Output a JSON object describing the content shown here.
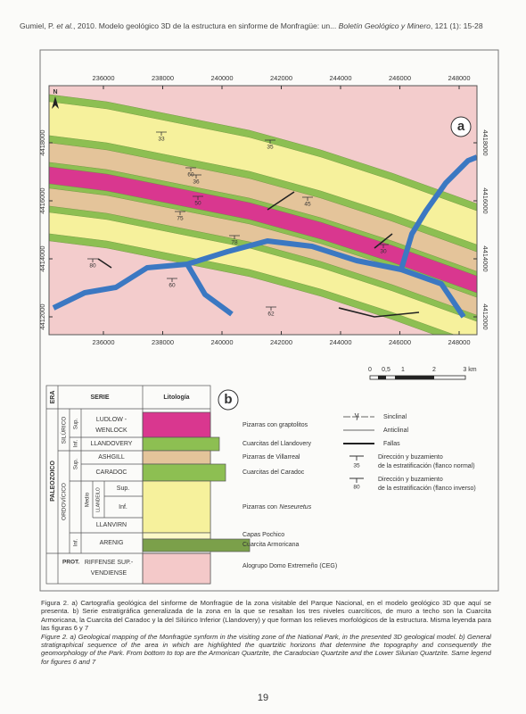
{
  "header": {
    "author": "Gumiel, P.",
    "et_al": "et al.",
    "citation": ", 2010. Modelo geológico 3D de la estructura en sinforme de Monfragüe: un...",
    "journal": "Boletín Geológico y Minero",
    "volume": ", 121 (1): 15-28"
  },
  "figure_a": {
    "label": "a",
    "north": "N",
    "x_ticks": [
      236000,
      238000,
      240000,
      242000,
      244000,
      246000,
      248000
    ],
    "y_ticks": [
      4412000,
      4414000,
      4416000,
      4418000
    ],
    "dips": [
      "33",
      "35",
      "60",
      "36",
      "50",
      "45",
      "75",
      "78",
      "30",
      "80",
      "60",
      "62"
    ],
    "scale_bar": [
      "0",
      "0,5",
      "1",
      "2",
      "3 km"
    ]
  },
  "figure_b": {
    "label": "b",
    "headers": {
      "era": "ERA",
      "serie": "SERIE",
      "lithology": "Litología"
    },
    "eras": {
      "proterozoic": "PROT.",
      "paleozoic": "PALEOZOICO"
    },
    "systems": {
      "silurian": "SILÚRICO",
      "ordovician": "ORDOVÍCICO"
    },
    "subdivisions": {
      "silurian_sup": "Sup.",
      "silurian_inf": "Inf.",
      "ordovician_sup": "Sup.",
      "ordovician_medio": "Medio",
      "ordovician_inf": "Inf.",
      "llandeilo": "LLANDEILO",
      "llandeilo_sup": "Sup.",
      "llandeilo_inf": "Inf."
    },
    "series": {
      "ludlow": "LUDLOW -",
      "wenlock": "WENLOCK",
      "llandovery": "LLANDOVERY",
      "ashgill": "ASHGILL",
      "caradoc": "CARADOC",
      "llanvirn": "LLANVIRN",
      "arenig": "ARENIG",
      "riffense": "RIFFENSE SUP.-",
      "vendiense": "VENDIENSE"
    },
    "lithologies": {
      "graptolitos": "Pizarras con graptolitos",
      "llandovery": "Cuarcitas del Llandovery",
      "villarreal": "Pizarras de Villarreal",
      "caradoc": "Cuarcitas del Caradoc",
      "neseuretus_prefix": "Pizarras con",
      "neseuretus": "Neseuretus",
      "pochico": "Capas Pochico",
      "armoricana": "Cuarcita Armoricana",
      "ceg": "Alogrupo Domo Extremeño (CEG)"
    },
    "symbols": {
      "sinclinal": "Sinclinal",
      "anticlinal": "Anticlinal",
      "fallas": "Fallas",
      "normal_line1": "Dirección y buzamiento",
      "normal_line2": "de la estratificación (flanco normal)",
      "normal_dip": "35",
      "inverse_line1": "Dirección y buzamiento",
      "inverse_line2": "de la estratificación (flanco inverso)",
      "inverse_dip": "80"
    }
  },
  "caption": {
    "spanish": "Figura 2. a) Cartografía geológica del sinforme de Monfragüe de la zona visitable del Parque Nacional, en el modelo geológico 3D que aquí se presenta. b) Serie estratigráfica generalizada de la zona en la que se resaltan los tres niveles cuarcíticos, de muro a techo son la Cuarcita Armoricana, la Cuarcita del Caradoc y la del Silúrico Inferior (Llandovery) y que forman los relieves morfológicos de la estructura. Misma leyenda para las figuras 6 y 7",
    "english": "Figure 2. a) Geological mapping of the Monfragüe synform in the visiting zone of the National Park, in the presented 3D geological model. b) General stratigraphical sequence of the area in which are highlighted the quartzitic horizons that determine the topography and consequently the geomorphology of the Park. From bottom to top are the Armorican Quartzite, the Caradocian Quartzite and the Lower Silurian Quartzite. Same legend for figures 6 and 7"
  },
  "page_number": "19"
}
